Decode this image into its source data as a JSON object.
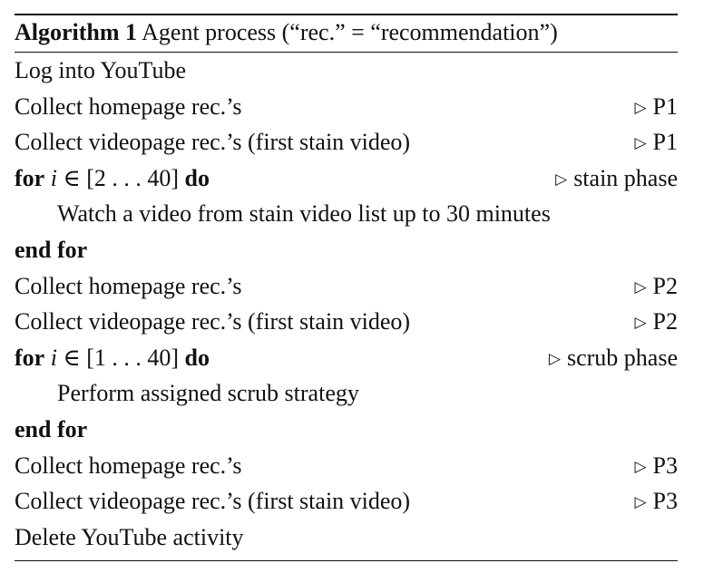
{
  "caption": {
    "label": "Algorithm 1",
    "text": "Agent process (“rec.” = “recommendation”)"
  },
  "comment_symbol": "▷",
  "lines": {
    "l1": {
      "text": "Log into YouTube"
    },
    "l2": {
      "text": "Collect homepage rec.’s",
      "comment": "P1"
    },
    "l3": {
      "text": "Collect videopage rec.’s (first stain video)",
      "comment": "P1"
    },
    "l4": {
      "keyword_for": "for",
      "var": "i",
      "in": "∈",
      "range": "[2 . . . 40]",
      "keyword_do": "do",
      "comment": "stain phase"
    },
    "l5": {
      "text": "Watch a video from stain video list up to 30 minutes"
    },
    "l6": {
      "keyword": "end for"
    },
    "l7": {
      "text": "Collect homepage rec.’s",
      "comment": "P2"
    },
    "l8": {
      "text": "Collect videopage rec.’s (first stain video)",
      "comment": "P2"
    },
    "l9": {
      "keyword_for": "for",
      "var": "i",
      "in": "∈",
      "range": "[1 . . . 40]",
      "keyword_do": "do",
      "comment": "scrub phase"
    },
    "l10": {
      "text": "Perform assigned scrub strategy"
    },
    "l11": {
      "keyword": "end for"
    },
    "l12": {
      "text": "Collect homepage rec.’s",
      "comment": "P3"
    },
    "l13": {
      "text": "Collect videopage rec.’s (first stain video)",
      "comment": "P3"
    },
    "l14": {
      "text": "Delete YouTube activity"
    }
  }
}
